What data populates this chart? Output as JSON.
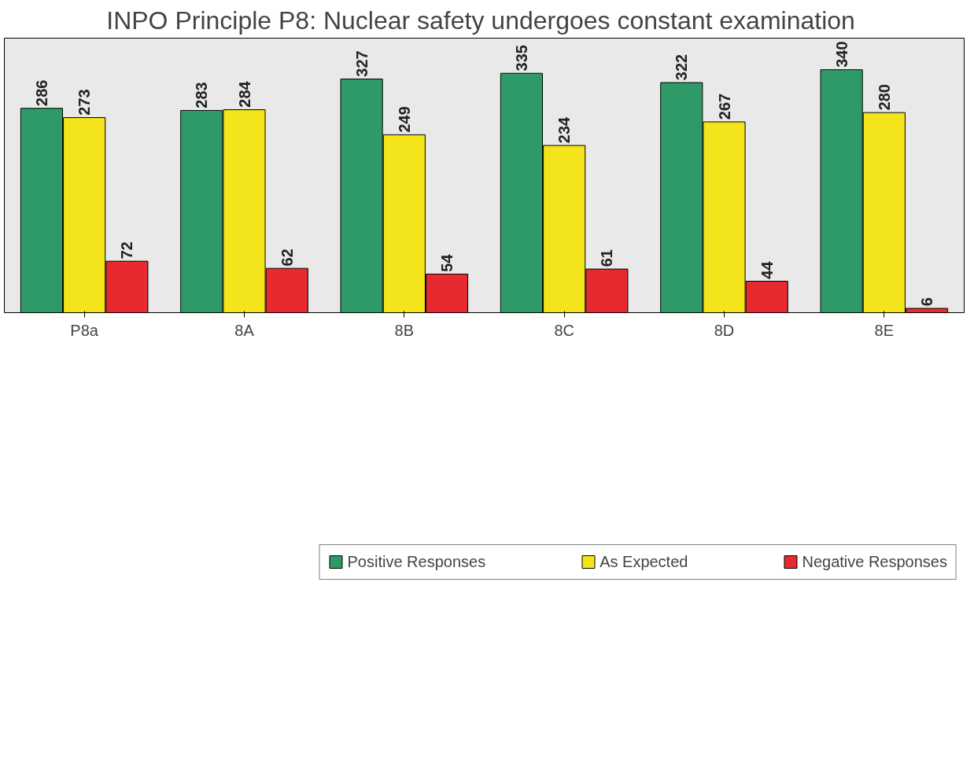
{
  "chart_data": {
    "type": "bar",
    "title": "INPO Principle P8:  Nuclear safety undergoes constant examination",
    "categories": [
      "P8a",
      "8A",
      "8B",
      "8C",
      "8D",
      "8E"
    ],
    "series": [
      {
        "name": "Positive Responses",
        "color": "#2e9a68",
        "values": [
          286,
          283,
          327,
          335,
          322,
          340
        ]
      },
      {
        "name": "As Expected",
        "color": "#f3e41c",
        "values": [
          273,
          284,
          249,
          234,
          267,
          280
        ]
      },
      {
        "name": "Negative Responses",
        "color": "#e62a2f",
        "values": [
          72,
          62,
          54,
          61,
          44,
          6
        ]
      }
    ],
    "data_labels": true,
    "legend": "bottom",
    "grid": false
  }
}
